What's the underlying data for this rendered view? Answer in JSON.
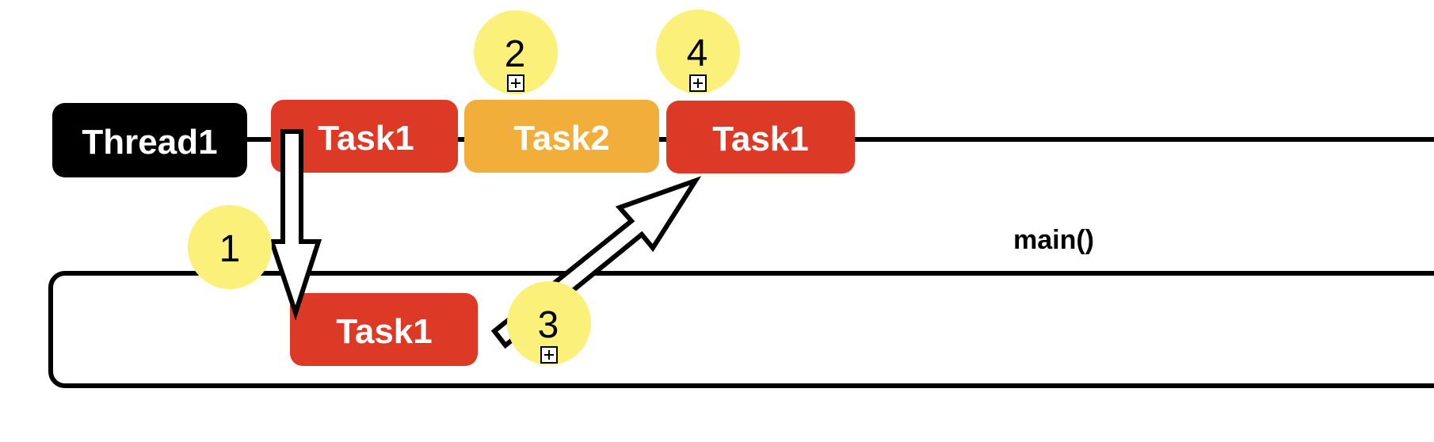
{
  "colors": {
    "task1": "#dc3a26",
    "task2": "#f1ae3a",
    "thread_label_bg": "#000000",
    "badge": "#fbf17a",
    "line": "#000000"
  },
  "thread": {
    "label": "Thread1"
  },
  "main_box": {
    "label": "main()"
  },
  "thread_tasks": [
    {
      "label": "Task1",
      "color_key": "task1"
    },
    {
      "label": "Task2",
      "color_key": "task2"
    },
    {
      "label": "Task1",
      "color_key": "task1"
    }
  ],
  "main_task": {
    "label": "Task1",
    "color_key": "task1"
  },
  "badges": [
    {
      "number": "1",
      "has_expand_icon": false
    },
    {
      "number": "2",
      "has_expand_icon": true
    },
    {
      "number": "3",
      "has_expand_icon": true
    },
    {
      "number": "4",
      "has_expand_icon": true
    }
  ],
  "arrows": [
    {
      "from": "thread-task-1",
      "to": "main-task",
      "direction": "down"
    },
    {
      "from": "main-task",
      "to": "thread-task-3",
      "direction": "up-right"
    }
  ],
  "icons": {
    "expand": "plus-square-icon"
  }
}
